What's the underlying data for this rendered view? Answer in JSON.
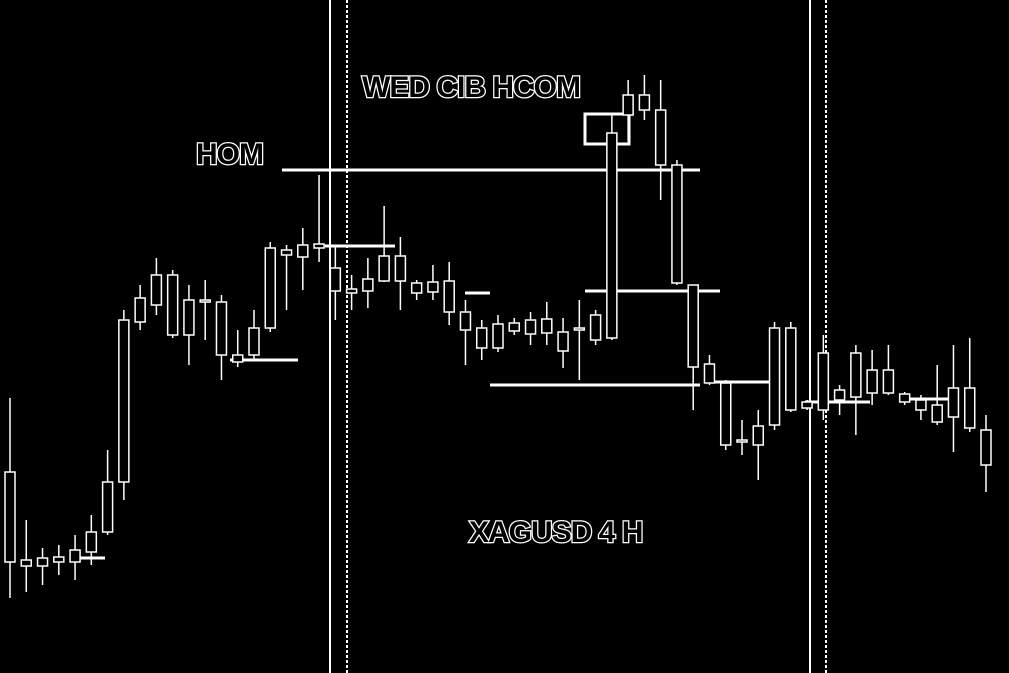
{
  "chart_data": {
    "type": "candlestick",
    "title": "XAGUSD 4 H",
    "annotations": [
      "WED CIB HCOM",
      "HOM"
    ],
    "color": "#ffffff",
    "ylim": [
      0,
      673
    ],
    "open": [
      201,
      113,
      115,
      116,
      123,
      141,
      191,
      353,
      375,
      398,
      398,
      373,
      373,
      371,
      318,
      345,
      425,
      423,
      428,
      429,
      405,
      384,
      394,
      417,
      417,
      390,
      391,
      392,
      361,
      345,
      349,
      350,
      353,
      354,
      341,
      345,
      358,
      540,
      578,
      578,
      563,
      508,
      388,
      309,
      290,
      233,
      247,
      345,
      345,
      271,
      320,
      283,
      320,
      303,
      303,
      279,
      273,
      268,
      285,
      285,
      243
    ],
    "high": [
      275,
      153,
      125,
      128,
      138,
      158,
      223,
      363,
      388,
      415,
      403,
      388,
      393,
      378,
      343,
      363,
      431,
      428,
      445,
      498,
      428,
      398,
      415,
      467,
      436,
      393,
      408,
      411,
      373,
      353,
      358,
      355,
      361,
      371,
      355,
      373,
      363,
      558,
      593,
      598,
      593,
      513,
      388,
      318,
      293,
      253,
      263,
      351,
      351,
      273,
      338,
      288,
      328,
      323,
      328,
      281,
      278,
      308,
      328,
      335,
      258
    ],
    "low": [
      75,
      81,
      88,
      98,
      93,
      108,
      138,
      173,
      343,
      358,
      335,
      308,
      333,
      293,
      306,
      313,
      341,
      363,
      383,
      411,
      353,
      363,
      365,
      391,
      363,
      373,
      373,
      348,
      308,
      313,
      321,
      338,
      328,
      328,
      305,
      293,
      328,
      333,
      533,
      553,
      473,
      388,
      263,
      288,
      223,
      218,
      193,
      243,
      261,
      263,
      253,
      258,
      238,
      268,
      278,
      268,
      253,
      248,
      221,
      241,
      181
    ],
    "close": [
      111,
      107,
      107,
      111,
      111,
      121,
      141,
      191,
      351,
      368,
      338,
      338,
      371,
      318,
      311,
      318,
      345,
      418,
      416,
      425,
      382,
      380,
      382,
      392,
      392,
      380,
      381,
      361,
      343,
      325,
      325,
      342,
      339,
      340,
      322,
      343,
      333,
      335,
      558,
      563,
      508,
      390,
      306,
      290,
      228,
      231,
      228,
      248,
      263,
      265,
      263,
      273,
      276,
      280,
      280,
      271,
      263,
      251,
      256,
      245,
      208
    ],
    "levels": [
      503,
      427,
      380,
      313,
      288,
      382,
      291,
      271,
      274,
      115
    ]
  }
}
